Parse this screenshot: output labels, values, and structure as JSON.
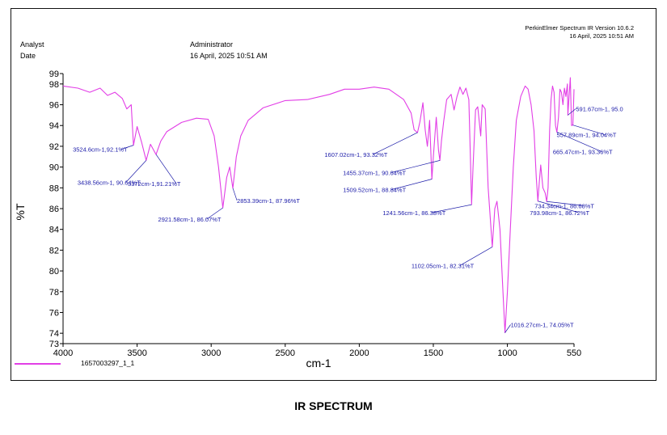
{
  "header": {
    "analyst_label": "Analyst",
    "date_label": "Date",
    "operator": "Administrator",
    "timestamp": "16 April, 2025 10:51 AM",
    "software": "PerkinElmer Spectrum IR Version 10.6.2",
    "software_timestamp": "16 April, 2025 10:51 AM"
  },
  "legend": {
    "label": "1657003297_1_1"
  },
  "caption": "IR SPECTRUM",
  "colors": {
    "spectrum": "#e23ee6",
    "annotation": "#1a1aa8",
    "axis": "#000000"
  },
  "chart_data": {
    "type": "line",
    "title": "IR SPECTRUM",
    "xlabel": "cm-1",
    "ylabel": "%T",
    "xlim": [
      4000,
      550
    ],
    "ylim": [
      73,
      99
    ],
    "x_ticks": [
      4000,
      3500,
      3000,
      2500,
      2000,
      1500,
      1000,
      550
    ],
    "y_ticks": [
      99,
      98,
      96,
      94,
      92,
      90,
      88,
      86,
      84,
      82,
      80,
      78,
      76,
      74,
      73
    ],
    "series": [
      {
        "name": "1657003297_1_1",
        "points": [
          [
            4000,
            97.8
          ],
          [
            3900,
            97.6
          ],
          [
            3820,
            97.2
          ],
          [
            3750,
            97.6
          ],
          [
            3700,
            96.9
          ],
          [
            3650,
            97.2
          ],
          [
            3600,
            96.6
          ],
          [
            3570,
            95.6
          ],
          [
            3540,
            96.0
          ],
          [
            3524.6,
            92.1
          ],
          [
            3500,
            93.9
          ],
          [
            3470,
            92.4
          ],
          [
            3438.56,
            90.64
          ],
          [
            3410,
            92.2
          ],
          [
            3372,
            91.21
          ],
          [
            3340,
            92.5
          ],
          [
            3300,
            93.4
          ],
          [
            3200,
            94.3
          ],
          [
            3100,
            94.7
          ],
          [
            3020,
            94.6
          ],
          [
            2980,
            93.0
          ],
          [
            2950,
            90.0
          ],
          [
            2921.58,
            86.07
          ],
          [
            2895,
            89.0
          ],
          [
            2875,
            90.0
          ],
          [
            2853.39,
            87.96
          ],
          [
            2830,
            91.0
          ],
          [
            2800,
            93.0
          ],
          [
            2750,
            94.5
          ],
          [
            2650,
            95.7
          ],
          [
            2500,
            96.4
          ],
          [
            2350,
            96.5
          ],
          [
            2200,
            97.0
          ],
          [
            2100,
            97.5
          ],
          [
            2000,
            97.5
          ],
          [
            1900,
            97.7
          ],
          [
            1800,
            97.5
          ],
          [
            1700,
            96.5
          ],
          [
            1650,
            95.2
          ],
          [
            1630,
            93.6
          ],
          [
            1607.02,
            93.32
          ],
          [
            1590,
            94.4
          ],
          [
            1570,
            96.2
          ],
          [
            1555,
            93.6
          ],
          [
            1540,
            92.0
          ],
          [
            1525,
            94.5
          ],
          [
            1509.52,
            88.84
          ],
          [
            1500,
            91.0
          ],
          [
            1480,
            94.8
          ],
          [
            1465,
            91.6
          ],
          [
            1455.37,
            90.64
          ],
          [
            1445,
            92.5
          ],
          [
            1430,
            94.4
          ],
          [
            1410,
            96.5
          ],
          [
            1380,
            97.0
          ],
          [
            1360,
            95.5
          ],
          [
            1340,
            96.8
          ],
          [
            1320,
            97.7
          ],
          [
            1300,
            97.0
          ],
          [
            1280,
            97.6
          ],
          [
            1260,
            96.5
          ],
          [
            1250,
            91.0
          ],
          [
            1241.56,
            86.38
          ],
          [
            1232,
            90.0
          ],
          [
            1215,
            95.5
          ],
          [
            1200,
            95.8
          ],
          [
            1180,
            93.0
          ],
          [
            1170,
            96.0
          ],
          [
            1150,
            95.6
          ],
          [
            1130,
            88.0
          ],
          [
            1102.05,
            82.31
          ],
          [
            1085,
            86.0
          ],
          [
            1070,
            86.7
          ],
          [
            1050,
            84.0
          ],
          [
            1030,
            78.0
          ],
          [
            1016.27,
            74.05
          ],
          [
            1000,
            78.0
          ],
          [
            980,
            84.0
          ],
          [
            960,
            90.0
          ],
          [
            940,
            94.5
          ],
          [
            910,
            96.8
          ],
          [
            880,
            97.8
          ],
          [
            860,
            97.5
          ],
          [
            840,
            96.0
          ],
          [
            820,
            93.5
          ],
          [
            805,
            89.0
          ],
          [
            793.98,
            86.72
          ],
          [
            785,
            88.5
          ],
          [
            775,
            90.2
          ],
          [
            760,
            88.0
          ],
          [
            745,
            87.5
          ],
          [
            734.34,
            86.68
          ],
          [
            725,
            88.0
          ],
          [
            715,
            93.5
          ],
          [
            705,
            96.5
          ],
          [
            695,
            97.8
          ],
          [
            685,
            97.2
          ],
          [
            675,
            94.0
          ],
          [
            665.47,
            93.36
          ],
          [
            655,
            94.8
          ],
          [
            645,
            97.5
          ],
          [
            635,
            97.2
          ],
          [
            625,
            96.0
          ],
          [
            615,
            97.6
          ],
          [
            605,
            96.8
          ],
          [
            595,
            98.0
          ],
          [
            591.67,
            95.0
          ],
          [
            585,
            96.5
          ],
          [
            575,
            98.6
          ],
          [
            567,
            94.0
          ],
          [
            557.89,
            94.04
          ],
          [
            552,
            96.5
          ],
          [
            550,
            97.5
          ]
        ]
      }
    ],
    "annotations": [
      {
        "text": "3524.6cm-1,92.1%T",
        "x": 3524.6,
        "y": 92.1
      },
      {
        "text": "3438.56cm-1, 90.64%T",
        "x": 3438.56,
        "y": 90.64
      },
      {
        "text": "3372cm-1,91.21%T",
        "x": 3372,
        "y": 91.21
      },
      {
        "text": "2921.58cm-1, 86.07%T",
        "x": 2921.58,
        "y": 86.07
      },
      {
        "text": "2853.39cm-1, 87.96%T",
        "x": 2853.39,
        "y": 87.96
      },
      {
        "text": "1607.02cm-1, 93.32%T",
        "x": 1607.02,
        "y": 93.32
      },
      {
        "text": "1455.37cm-1, 90.64%T",
        "x": 1455.37,
        "y": 90.64
      },
      {
        "text": "1509.52cm-1, 88.84%T",
        "x": 1509.52,
        "y": 88.84
      },
      {
        "text": "1241.56cm-1, 86.38%T",
        "x": 1241.56,
        "y": 86.38
      },
      {
        "text": "1102.05cm-1, 82.31%T",
        "x": 1102.05,
        "y": 82.31
      },
      {
        "text": "1016.27cm-1, 74.05%T",
        "x": 1016.27,
        "y": 74.05
      },
      {
        "text": "793.98cm-1, 86.72%T",
        "x": 793.98,
        "y": 86.72
      },
      {
        "text": "734.34cm-1, 86.68%T",
        "x": 734.34,
        "y": 86.68
      },
      {
        "text": "665.47cm-1, 93.36%T",
        "x": 665.47,
        "y": 93.36
      },
      {
        "text": "557.89cm-1, 94.04%T",
        "x": 557.89,
        "y": 94.04
      },
      {
        "text": "591.67cm-1, 95.0",
        "x": 591.67,
        "y": 95.0
      }
    ]
  }
}
